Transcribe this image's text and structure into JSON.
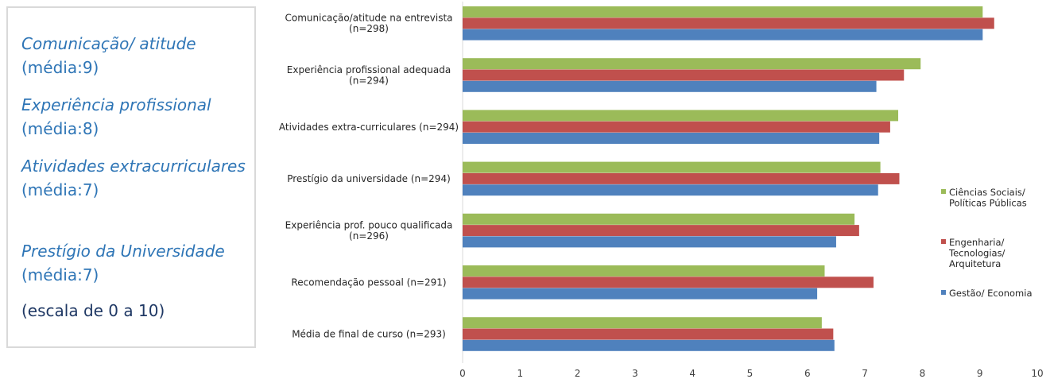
{
  "sidebar": {
    "items": [
      {
        "title": "Comunicação/ atitude",
        "mean": "(média:9)"
      },
      {
        "title": "Experiência profissional",
        "mean": "(média:8)"
      },
      {
        "title": "Atividades extracurriculares",
        "mean": "(média:7)"
      },
      {
        "title": "Prestígio da Universidade",
        "mean": "(média:7)"
      }
    ],
    "scale_note": "(escala de 0 a 10)"
  },
  "chart_data": {
    "type": "bar",
    "orientation": "horizontal",
    "categories": [
      [
        "Comunicação/atitude na entrevista",
        "(n=298)"
      ],
      [
        "Experiência profissional adequada",
        "(n=294)"
      ],
      [
        "Atividades extra-curriculares (n=294)"
      ],
      [
        "Prestígio da universidade (n=294)"
      ],
      [
        "Experiência prof.  pouco qualificada",
        "(n=296)"
      ],
      [
        "Recomendação pessoal (n=291)"
      ],
      [
        "Média de final de curso (n=293)"
      ]
    ],
    "series": [
      {
        "name": "Ciências Sociais/ Políticas Públicas",
        "legend_lines": [
          "Ciências Sociais/",
          "Políticas Públicas"
        ],
        "color": "#9bbb59",
        "values": [
          9.05,
          7.97,
          7.58,
          7.27,
          6.82,
          6.3,
          6.25
        ]
      },
      {
        "name": "Engenharia/ Tecnologias/ Arquitetura",
        "legend_lines": [
          "Engenharia/",
          "Tecnologias/",
          "Arquitetura"
        ],
        "color": "#c0504d",
        "values": [
          9.25,
          7.68,
          7.44,
          7.6,
          6.9,
          7.15,
          6.45
        ]
      },
      {
        "name": "Gestão/ Economia",
        "legend_lines": [
          "Gestão/ Economia"
        ],
        "color": "#4f81bd",
        "values": [
          9.05,
          7.2,
          7.25,
          7.23,
          6.5,
          6.17,
          6.47
        ]
      }
    ],
    "xlim": [
      0,
      10
    ],
    "xticks": [
      0,
      1,
      2,
      3,
      4,
      5,
      6,
      7,
      8,
      9,
      10
    ],
    "grid": false,
    "legend": "right"
  }
}
